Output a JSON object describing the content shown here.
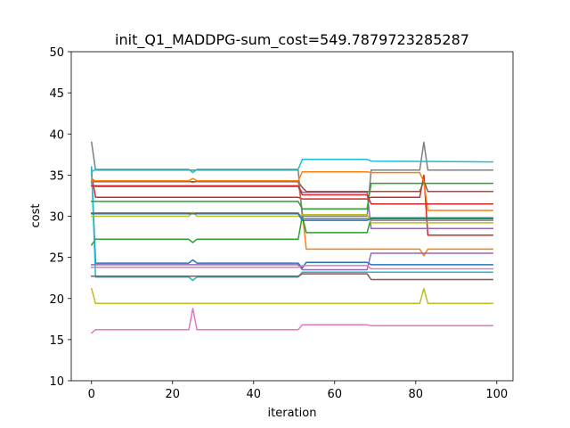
{
  "chart_data": {
    "type": "line",
    "title": "init_Q1_MADDPG-sum_cost=549.7879723285287",
    "xlabel": "iteration",
    "ylabel": "cost",
    "xlim": [
      -5,
      104
    ],
    "ylim": [
      10,
      50
    ],
    "xticks": [
      0,
      20,
      40,
      60,
      80,
      100
    ],
    "yticks": [
      10,
      15,
      20,
      25,
      30,
      35,
      40,
      45,
      50
    ],
    "grid": false,
    "legend": "none",
    "series": [
      {
        "color": "#1f77b4",
        "points": [
          [
            0,
            35.7
          ],
          [
            1,
            24.3
          ],
          [
            24,
            24.3
          ],
          [
            25,
            24.7
          ],
          [
            26,
            24.3
          ],
          [
            51,
            24.3
          ],
          [
            52,
            23.7
          ],
          [
            53,
            24.4
          ],
          [
            68,
            24.4
          ],
          [
            69,
            24.1
          ],
          [
            99,
            24.1
          ]
        ]
      },
      {
        "color": "#ff7f0e",
        "points": [
          [
            0,
            34.5
          ],
          [
            1,
            34.3
          ],
          [
            24,
            34.3
          ],
          [
            25,
            34.1
          ],
          [
            26,
            34.3
          ],
          [
            51,
            34.3
          ],
          [
            52,
            30.5
          ],
          [
            53,
            26.0
          ],
          [
            68,
            26.0
          ],
          [
            69,
            26.0
          ],
          [
            81,
            26.0
          ],
          [
            82,
            25.2
          ],
          [
            83,
            26.0
          ],
          [
            99,
            26.0
          ]
        ]
      },
      {
        "color": "#2ca02c",
        "points": [
          [
            0,
            26.5
          ],
          [
            1,
            27.2
          ],
          [
            24,
            27.2
          ],
          [
            25,
            26.8
          ],
          [
            26,
            27.2
          ],
          [
            51,
            27.2
          ],
          [
            52,
            30.0
          ],
          [
            53,
            28.0
          ],
          [
            68,
            28.0
          ],
          [
            69,
            29.8
          ],
          [
            99,
            29.8
          ]
        ]
      },
      {
        "color": "#d62728",
        "points": [
          [
            0,
            35.0
          ],
          [
            1,
            32.3
          ],
          [
            24,
            32.3
          ],
          [
            51,
            32.3
          ],
          [
            52,
            32.1
          ],
          [
            68,
            32.1
          ],
          [
            69,
            32.3
          ],
          [
            81,
            32.3
          ],
          [
            82,
            35.0
          ],
          [
            83,
            27.7
          ],
          [
            99,
            27.7
          ]
        ]
      },
      {
        "color": "#9467bd",
        "points": [
          [
            0,
            34.0
          ],
          [
            1,
            33.6
          ],
          [
            51,
            33.6
          ],
          [
            52,
            32.9
          ],
          [
            68,
            32.9
          ],
          [
            69,
            28.5
          ],
          [
            99,
            28.5
          ]
        ]
      },
      {
        "color": "#8c564b",
        "points": [
          [
            0,
            34.2
          ],
          [
            1,
            34.2
          ],
          [
            51,
            34.2
          ],
          [
            52,
            33.5
          ],
          [
            53,
            33.0
          ],
          [
            68,
            33.0
          ],
          [
            69,
            33.0
          ],
          [
            81,
            33.0
          ],
          [
            82,
            34.3
          ],
          [
            83,
            33.0
          ],
          [
            99,
            33.0
          ]
        ]
      },
      {
        "color": "#e377c2",
        "points": [
          [
            0,
            15.8
          ],
          [
            1,
            16.2
          ],
          [
            24,
            16.2
          ],
          [
            25,
            18.8
          ],
          [
            26,
            16.2
          ],
          [
            51,
            16.2
          ],
          [
            52,
            16.8
          ],
          [
            68,
            16.8
          ],
          [
            69,
            16.7
          ],
          [
            99,
            16.7
          ]
        ]
      },
      {
        "color": "#7f7f7f",
        "points": [
          [
            0,
            39.0
          ],
          [
            1,
            35.6
          ],
          [
            51,
            35.6
          ],
          [
            52,
            30.0
          ],
          [
            68,
            30.0
          ],
          [
            69,
            35.6
          ],
          [
            81,
            35.6
          ],
          [
            82,
            39.0
          ],
          [
            83,
            35.6
          ],
          [
            99,
            35.6
          ]
        ]
      },
      {
        "color": "#bcbd22",
        "points": [
          [
            0,
            21.2
          ],
          [
            1,
            19.4
          ],
          [
            81,
            19.4
          ],
          [
            82,
            21.2
          ],
          [
            83,
            19.4
          ],
          [
            99,
            19.4
          ]
        ]
      },
      {
        "color": "#17becf",
        "points": [
          [
            0,
            36.0
          ],
          [
            1,
            22.6
          ],
          [
            24,
            22.6
          ],
          [
            25,
            22.2
          ],
          [
            26,
            22.6
          ],
          [
            51,
            22.6
          ],
          [
            52,
            23.2
          ],
          [
            68,
            23.2
          ],
          [
            69,
            23.2
          ],
          [
            99,
            23.2
          ]
        ]
      },
      {
        "color": "#17becf",
        "points": [
          [
            0,
            35.4
          ],
          [
            1,
            35.7
          ],
          [
            24,
            35.7
          ],
          [
            25,
            35.3
          ],
          [
            26,
            35.7
          ],
          [
            51,
            35.7
          ],
          [
            52,
            36.9
          ],
          [
            68,
            36.9
          ],
          [
            69,
            36.7
          ],
          [
            99,
            36.6
          ]
        ]
      },
      {
        "color": "#ff7f0e",
        "points": [
          [
            0,
            34.3
          ],
          [
            1,
            34.3
          ],
          [
            24,
            34.3
          ],
          [
            25,
            34.6
          ],
          [
            26,
            34.3
          ],
          [
            51,
            34.3
          ],
          [
            52,
            35.4
          ],
          [
            68,
            35.4
          ],
          [
            69,
            35.3
          ],
          [
            81,
            35.3
          ],
          [
            82,
            34.2
          ],
          [
            83,
            30.7
          ],
          [
            99,
            30.7
          ]
        ]
      },
      {
        "color": "#2ca02c",
        "points": [
          [
            0,
            31.8
          ],
          [
            1,
            31.8
          ],
          [
            51,
            31.8
          ],
          [
            52,
            30.9
          ],
          [
            68,
            30.9
          ],
          [
            69,
            34.0
          ],
          [
            99,
            34.0
          ]
        ]
      },
      {
        "color": "#d62728",
        "points": [
          [
            0,
            33.7
          ],
          [
            1,
            33.7
          ],
          [
            51,
            33.7
          ],
          [
            52,
            32.6
          ],
          [
            68,
            32.6
          ],
          [
            69,
            31.5
          ],
          [
            99,
            31.5
          ]
        ]
      },
      {
        "color": "#9467bd",
        "points": [
          [
            0,
            24.1
          ],
          [
            1,
            24.1
          ],
          [
            51,
            24.1
          ],
          [
            52,
            23.5
          ],
          [
            68,
            23.5
          ],
          [
            69,
            25.5
          ],
          [
            99,
            25.5
          ]
        ]
      },
      {
        "color": "#8c564b",
        "points": [
          [
            0,
            22.7
          ],
          [
            1,
            22.7
          ],
          [
            51,
            22.7
          ],
          [
            52,
            23.0
          ],
          [
            68,
            23.0
          ],
          [
            69,
            22.3
          ],
          [
            99,
            22.3
          ]
        ]
      },
      {
        "color": "#e377c2",
        "points": [
          [
            0,
            23.8
          ],
          [
            1,
            23.8
          ],
          [
            51,
            23.8
          ],
          [
            52,
            24.0
          ],
          [
            68,
            24.0
          ],
          [
            69,
            23.6
          ],
          [
            99,
            23.6
          ]
        ]
      },
      {
        "color": "#7f7f7f",
        "points": [
          [
            0,
            30.4
          ],
          [
            1,
            30.4
          ],
          [
            51,
            30.4
          ],
          [
            52,
            29.7
          ],
          [
            68,
            29.7
          ],
          [
            69,
            29.5
          ],
          [
            99,
            29.5
          ]
        ]
      },
      {
        "color": "#bcbd22",
        "points": [
          [
            0,
            30.0
          ],
          [
            1,
            30.0
          ],
          [
            24,
            30.0
          ],
          [
            25,
            30.5
          ],
          [
            26,
            30.0
          ],
          [
            51,
            30.0
          ],
          [
            52,
            30.2
          ],
          [
            68,
            30.2
          ],
          [
            69,
            29.2
          ],
          [
            99,
            29.2
          ]
        ]
      },
      {
        "color": "#1f77b4",
        "points": [
          [
            0,
            30.3
          ],
          [
            1,
            30.3
          ],
          [
            51,
            30.3
          ],
          [
            52,
            29.5
          ],
          [
            68,
            29.5
          ],
          [
            69,
            29.7
          ],
          [
            99,
            29.7
          ]
        ]
      }
    ]
  }
}
